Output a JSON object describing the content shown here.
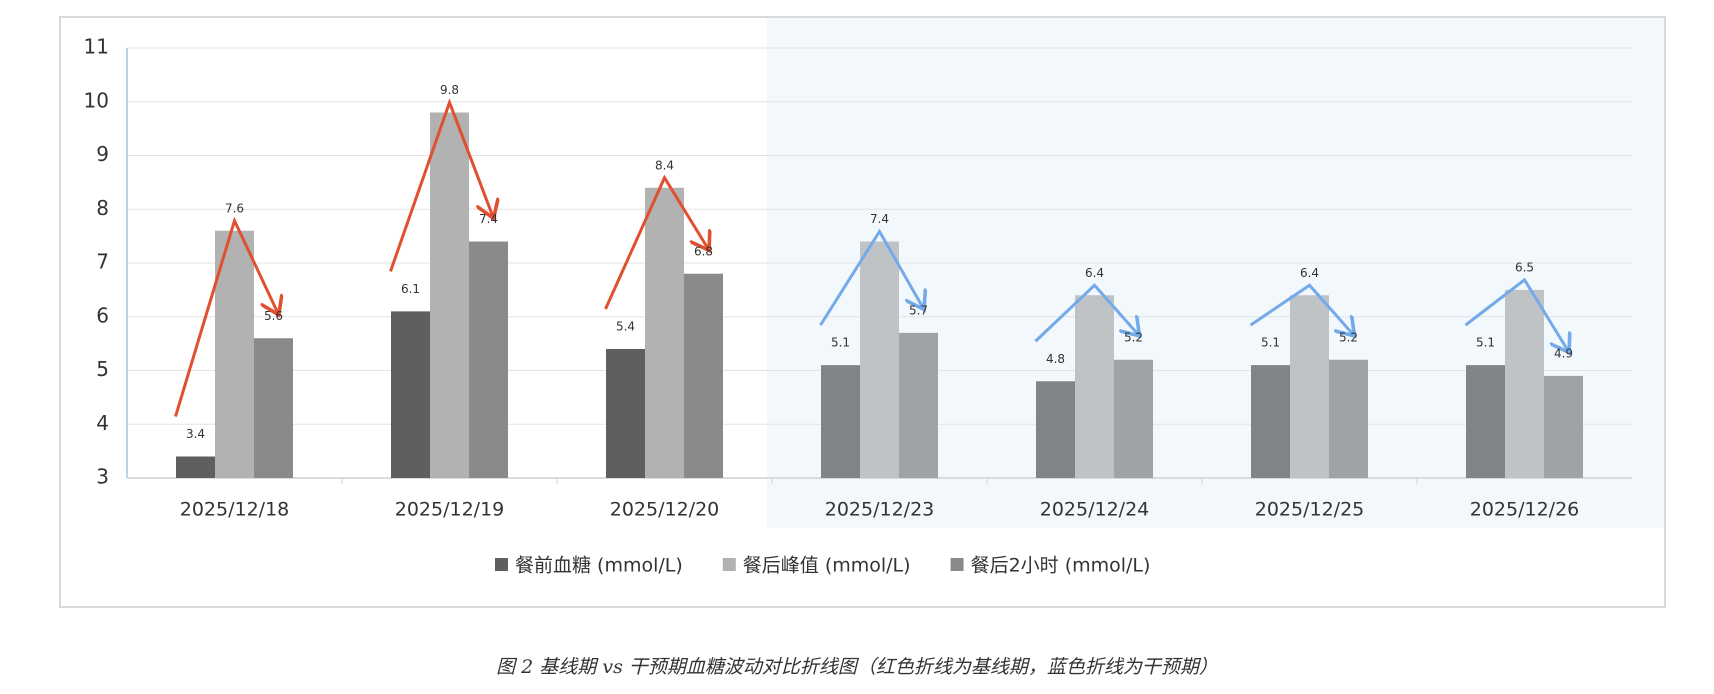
{
  "chart_data": {
    "type": "bar",
    "categories": [
      "2025/12/18",
      "2025/12/19",
      "2025/12/20",
      "2025/12/23",
      "2025/12/24",
      "2025/12/25",
      "2025/12/26"
    ],
    "series": [
      {
        "name": "餐前血糖 (mmol/L)",
        "color": "#5f5f5f",
        "shaded_color": "#808488",
        "values": [
          3.4,
          6.1,
          5.4,
          5.1,
          4.8,
          5.1,
          5.1
        ]
      },
      {
        "name": "餐后峰值 (mmol/L)",
        "color": "#b2b2b2",
        "shaded_color": "#c0c3c6",
        "values": [
          7.6,
          9.8,
          8.4,
          7.4,
          6.4,
          6.4,
          6.5
        ]
      },
      {
        "name": "餐后2小时 (mmol/L)",
        "color": "#8a8a8a",
        "shaded_color": "#a0a3a6",
        "values": [
          5.6,
          7.4,
          6.8,
          5.7,
          5.2,
          5.2,
          4.9
        ]
      }
    ],
    "ylim": [
      3,
      11
    ],
    "yticks": [
      3,
      4,
      5,
      6,
      7,
      8,
      9,
      10,
      11
    ],
    "grid": true,
    "legend": "bottom",
    "shaded_start": 3,
    "shade_color": "#f3f8fc",
    "baseline_arrow_color": "#e0502f",
    "intervention_arrow_color": "#72aaea"
  },
  "caption": "图 2 基线期 vs 干预期血糖波动对比折线图（红色折线为基线期，蓝色折线为干预期）"
}
